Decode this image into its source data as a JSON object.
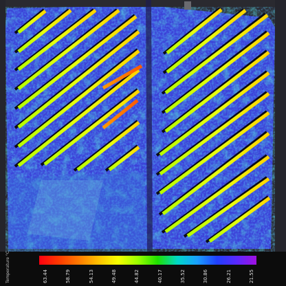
{
  "legend": {
    "title": "Temperature °C",
    "ticks": [
      "63.44",
      "58.79",
      "54.13",
      "49.48",
      "44.82",
      "40.17",
      "35.52",
      "30.86",
      "26.21",
      "21.55"
    ],
    "colors": [
      "#ff0010",
      "#ff3a00",
      "#ff7a00",
      "#ffc000",
      "#f6ff00",
      "#9aff00",
      "#1ee000",
      "#00d8c8",
      "#1aa0ff",
      "#2040ff",
      "#5a28ff",
      "#a010e0"
    ]
  }
}
